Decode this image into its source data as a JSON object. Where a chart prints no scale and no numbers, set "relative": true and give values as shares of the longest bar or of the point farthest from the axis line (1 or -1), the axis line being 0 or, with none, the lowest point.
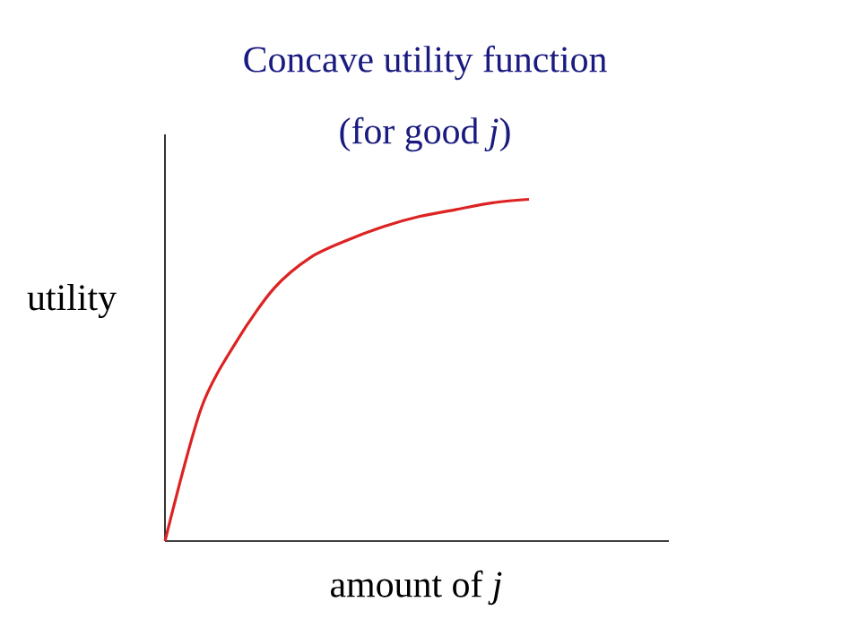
{
  "chart_data": {
    "type": "line",
    "title": "Concave utility function",
    "subtitle": "(for good *j*)",
    "xlabel": "amount of *j*",
    "ylabel": "utility",
    "categories": [
      null,
      null,
      null,
      null,
      null,
      null,
      null,
      null,
      null,
      null,
      null
    ],
    "values": [
      0,
      0.39,
      0.59,
      0.74,
      0.83,
      0.88,
      0.92,
      0.95,
      0.97,
      0.99,
      1.0
    ],
    "color": "#dd2222",
    "relative": true
  }
}
